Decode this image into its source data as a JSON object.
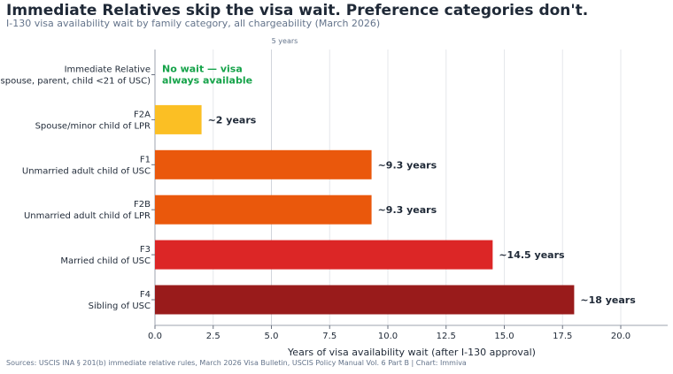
{
  "title": "Immediate Relatives skip the visa wait. Preference categories don't.",
  "subtitle": "I-130 visa availability wait by family category, all chargeability (March 2026)",
  "source": "Sources: USCIS INA § 201(b) immediate relative rules, March 2026 Visa Bulletin, USCIS Policy Manual Vol. 6 Part B | Chart: Immiva",
  "chart_data": {
    "type": "bar",
    "orientation": "horizontal",
    "categories": [
      {
        "code": "Immediate Relative",
        "desc": "(spouse, parent, child <21 of USC)"
      },
      {
        "code": "F2A",
        "desc": "Spouse/minor child of LPR"
      },
      {
        "code": "F1",
        "desc": "Unmarried adult child of USC"
      },
      {
        "code": "F2B",
        "desc": "Unmarried adult child of LPR"
      },
      {
        "code": "F3",
        "desc": "Married child of USC"
      },
      {
        "code": "F4",
        "desc": "Sibling of USC"
      }
    ],
    "values": [
      0,
      2,
      9.3,
      9.3,
      14.5,
      18
    ],
    "value_labels": [
      "No wait — visa always available",
      "~2 years",
      "~9.3 years",
      "~9.3 years",
      "~14.5 years",
      "~18 years"
    ],
    "colors": [
      "#16a34a",
      "#fbbf24",
      "#ea580c",
      "#ea580c",
      "#dc2626",
      "#991b1b"
    ],
    "no_wait_label": [
      "No wait — visa",
      "always available"
    ],
    "xlabel": "Years of visa availability wait (after I-130 approval)",
    "ylabel": "",
    "xlim": [
      0,
      22
    ],
    "xticks": [
      0,
      2.5,
      5,
      7.5,
      10,
      12.5,
      15,
      17.5,
      20
    ],
    "xtick_labels": [
      "0.0",
      "2.5",
      "5.0",
      "7.5",
      "10.0",
      "12.5",
      "15.0",
      "17.5",
      "20.0"
    ],
    "reference_line": {
      "value": 5,
      "label": "5 years"
    },
    "grid": true,
    "legend": "none"
  }
}
